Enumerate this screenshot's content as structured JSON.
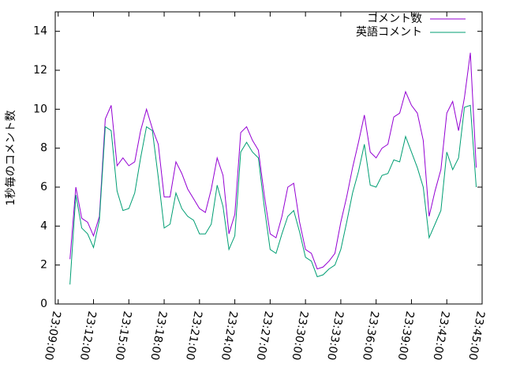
{
  "chart_data": {
    "type": "line",
    "y_label": "1秒毎のコメント数",
    "x": [
      "23:10:00",
      "23:10:30",
      "23:11:00",
      "23:11:30",
      "23:12:00",
      "23:12:30",
      "23:13:00",
      "23:13:30",
      "23:14:00",
      "23:14:30",
      "23:15:00",
      "23:15:30",
      "23:16:00",
      "23:16:30",
      "23:17:00",
      "23:17:30",
      "23:18:00",
      "23:18:30",
      "23:19:00",
      "23:19:30",
      "23:20:00",
      "23:20:30",
      "23:21:00",
      "23:21:30",
      "23:22:00",
      "23:22:30",
      "23:23:00",
      "23:23:30",
      "23:24:00",
      "23:24:30",
      "23:25:00",
      "23:25:30",
      "23:26:00",
      "23:26:30",
      "23:27:00",
      "23:27:30",
      "23:28:00",
      "23:28:30",
      "23:29:00",
      "23:29:30",
      "23:30:00",
      "23:30:30",
      "23:31:00",
      "23:31:30",
      "23:32:00",
      "23:32:30",
      "23:33:00",
      "23:33:30",
      "23:34:00",
      "23:34:30",
      "23:35:00",
      "23:35:30",
      "23:36:00",
      "23:36:30",
      "23:37:00",
      "23:37:30",
      "23:38:00",
      "23:38:30",
      "23:39:00",
      "23:39:30",
      "23:40:00",
      "23:40:30",
      "23:41:00",
      "23:41:30",
      "23:42:00",
      "23:42:30",
      "23:43:00",
      "23:43:30",
      "23:44:00",
      "23:44:30"
    ],
    "series": [
      {
        "name": "コメント数",
        "color": "#9400d3",
        "values": [
          2.3,
          6.0,
          4.4,
          4.2,
          3.5,
          4.5,
          9.5,
          10.2,
          7.1,
          7.5,
          7.1,
          7.3,
          8.9,
          10.0,
          9.0,
          8.2,
          5.5,
          5.5,
          7.3,
          6.7,
          5.9,
          5.4,
          4.9,
          4.7,
          5.9,
          7.5,
          6.6,
          3.6,
          4.6,
          8.8,
          9.1,
          8.4,
          7.9,
          5.6,
          3.6,
          3.4,
          4.5,
          6.0,
          6.2,
          4.2,
          2.8,
          2.6,
          1.8,
          1.9,
          2.2,
          2.6,
          4.2,
          5.5,
          7.0,
          8.3,
          9.7,
          7.8,
          7.5,
          8.0,
          8.2,
          9.6,
          9.8,
          10.9,
          10.2,
          9.8,
          8.4,
          4.5,
          5.8,
          6.9,
          9.8,
          10.4,
          8.9,
          10.6,
          12.9,
          7.0
        ]
      },
      {
        "name": "英語コメント",
        "color": "#009e73",
        "values": [
          1.0,
          5.6,
          3.9,
          3.6,
          2.9,
          4.3,
          9.1,
          8.9,
          5.8,
          4.8,
          4.9,
          5.7,
          7.5,
          9.1,
          8.9,
          6.5,
          3.9,
          4.1,
          5.7,
          4.9,
          4.5,
          4.3,
          3.6,
          3.6,
          4.1,
          6.1,
          5.0,
          2.8,
          3.5,
          7.8,
          8.3,
          7.8,
          7.5,
          5.0,
          2.8,
          2.6,
          3.6,
          4.5,
          4.8,
          3.7,
          2.4,
          2.2,
          1.4,
          1.5,
          1.8,
          2.0,
          2.8,
          4.2,
          5.7,
          6.8,
          8.2,
          6.1,
          6.0,
          6.6,
          6.7,
          7.4,
          7.3,
          8.6,
          7.8,
          7.0,
          6.0,
          3.4,
          4.1,
          4.8,
          7.8,
          6.9,
          7.5,
          10.1,
          10.2,
          6.0
        ]
      }
    ],
    "xlim": [
      "23:08:45",
      "23:45:00"
    ],
    "xticks": [
      "23:09:00",
      "23:12:00",
      "23:15:00",
      "23:18:00",
      "23:21:00",
      "23:24:00",
      "23:27:00",
      "23:30:00",
      "23:33:00",
      "23:36:00",
      "23:39:00",
      "23:42:00",
      "23:45:00"
    ],
    "ylim": [
      0,
      15
    ],
    "yticks": [
      0,
      2,
      4,
      6,
      8,
      10,
      12,
      14
    ],
    "grid": false,
    "legend": "top-right"
  }
}
